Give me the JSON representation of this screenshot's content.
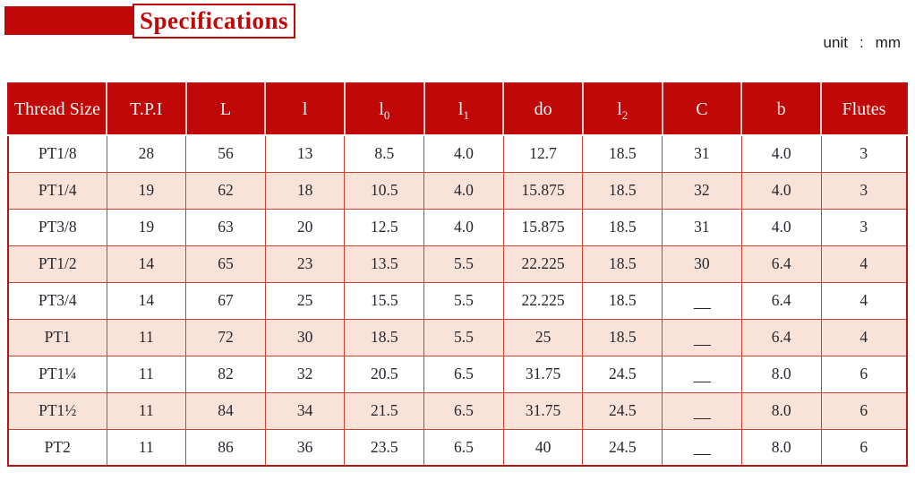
{
  "title": {
    "label": "Specifications"
  },
  "unit": {
    "label": "unit",
    "colon": ":",
    "value": "mm"
  },
  "colors": {
    "header_red": "#c00808",
    "title_red": "#c00808",
    "border_red": "#cc4334",
    "outer_border": "#b81414",
    "row_alt_bg": "#f9e3d8",
    "row_bg": "#ffffff",
    "header_text": "#fdf6f0",
    "cell_text": "#26262e"
  },
  "table": {
    "columns": [
      {
        "label": "Thread Size",
        "sub": ""
      },
      {
        "label": "T.P.I",
        "sub": ""
      },
      {
        "label": "L",
        "sub": ""
      },
      {
        "label": "l",
        "sub": ""
      },
      {
        "label": "l",
        "sub": "0"
      },
      {
        "label": "l",
        "sub": "1"
      },
      {
        "label": "do",
        "sub": ""
      },
      {
        "label": "l",
        "sub": "2"
      },
      {
        "label": "C",
        "sub": ""
      },
      {
        "label": "b",
        "sub": ""
      },
      {
        "label": "Flutes",
        "sub": ""
      }
    ],
    "rows": [
      [
        "PT1/8",
        "28",
        "56",
        "13",
        "8.5",
        "4.0",
        "12.7",
        "18.5",
        "31",
        "4.0",
        "3"
      ],
      [
        "PT1/4",
        "19",
        "62",
        "18",
        "10.5",
        "4.0",
        "15.875",
        "18.5",
        "32",
        "4.0",
        "3"
      ],
      [
        "PT3/8",
        "19",
        "63",
        "20",
        "12.5",
        "4.0",
        "15.875",
        "18.5",
        "31",
        "4.0",
        "3"
      ],
      [
        "PT1/2",
        "14",
        "65",
        "23",
        "13.5",
        "5.5",
        "22.225",
        "18.5",
        "30",
        "6.4",
        "4"
      ],
      [
        "PT3/4",
        "14",
        "67",
        "25",
        "15.5",
        "5.5",
        "22.225",
        "18.5",
        "—",
        "6.4",
        "4"
      ],
      [
        "PT1",
        "11",
        "72",
        "30",
        "18.5",
        "5.5",
        "25",
        "18.5",
        "—",
        "6.4",
        "4"
      ],
      [
        "PT1¼",
        "11",
        "82",
        "32",
        "20.5",
        "6.5",
        "31.75",
        "24.5",
        "—",
        "8.0",
        "6"
      ],
      [
        "PT1½",
        "11",
        "84",
        "34",
        "21.5",
        "6.5",
        "31.75",
        "24.5",
        "—",
        "8.0",
        "6"
      ],
      [
        "PT2",
        "11",
        "86",
        "36",
        "23.5",
        "6.5",
        "40",
        "24.5",
        "—",
        "8.0",
        "6"
      ]
    ]
  }
}
